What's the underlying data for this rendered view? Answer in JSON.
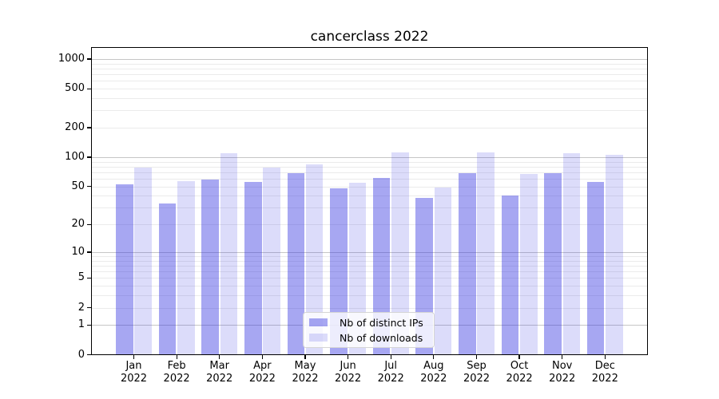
{
  "title": "cancerclass 2022",
  "chart_data": {
    "type": "bar",
    "title": "cancerclass 2022",
    "categories": [
      "Jan 2022",
      "Feb 2022",
      "Mar 2022",
      "Apr 2022",
      "May 2022",
      "Jun 2022",
      "Jul 2022",
      "Aug 2022",
      "Sep 2022",
      "Oct 2022",
      "Nov 2022",
      "Dec 2022"
    ],
    "series": [
      {
        "name": "Nb of distinct IPs",
        "color": "#2d2de1",
        "alpha": 0.42,
        "values": [
          53,
          33,
          59,
          56,
          68,
          48,
          61,
          38,
          68,
          40,
          68,
          56
        ]
      },
      {
        "name": "Nb of downloads",
        "color": "#2d2de1",
        "alpha": 0.17,
        "values": [
          79,
          57,
          110,
          78,
          85,
          55,
          112,
          49,
          112,
          67,
          111,
          105
        ]
      }
    ],
    "y_ticks": [
      0,
      1,
      2,
      5,
      10,
      20,
      50,
      100,
      200,
      500,
      1000
    ],
    "y_major_grid": [
      1,
      10,
      100,
      1000
    ],
    "y_minor_grid_pattern": [
      2,
      3,
      4,
      5,
      6,
      7,
      8,
      9
    ],
    "y_scale": "log10(1+v)",
    "y_axis_top_value": 1326,
    "xlabel": "",
    "ylabel": "",
    "grid": "on",
    "legend_position": "lower-center",
    "colors": {
      "grid_major": "#c6c6c6",
      "grid_minor": "#ebebeb",
      "axis": "#000000",
      "background": "#ffffff"
    }
  }
}
